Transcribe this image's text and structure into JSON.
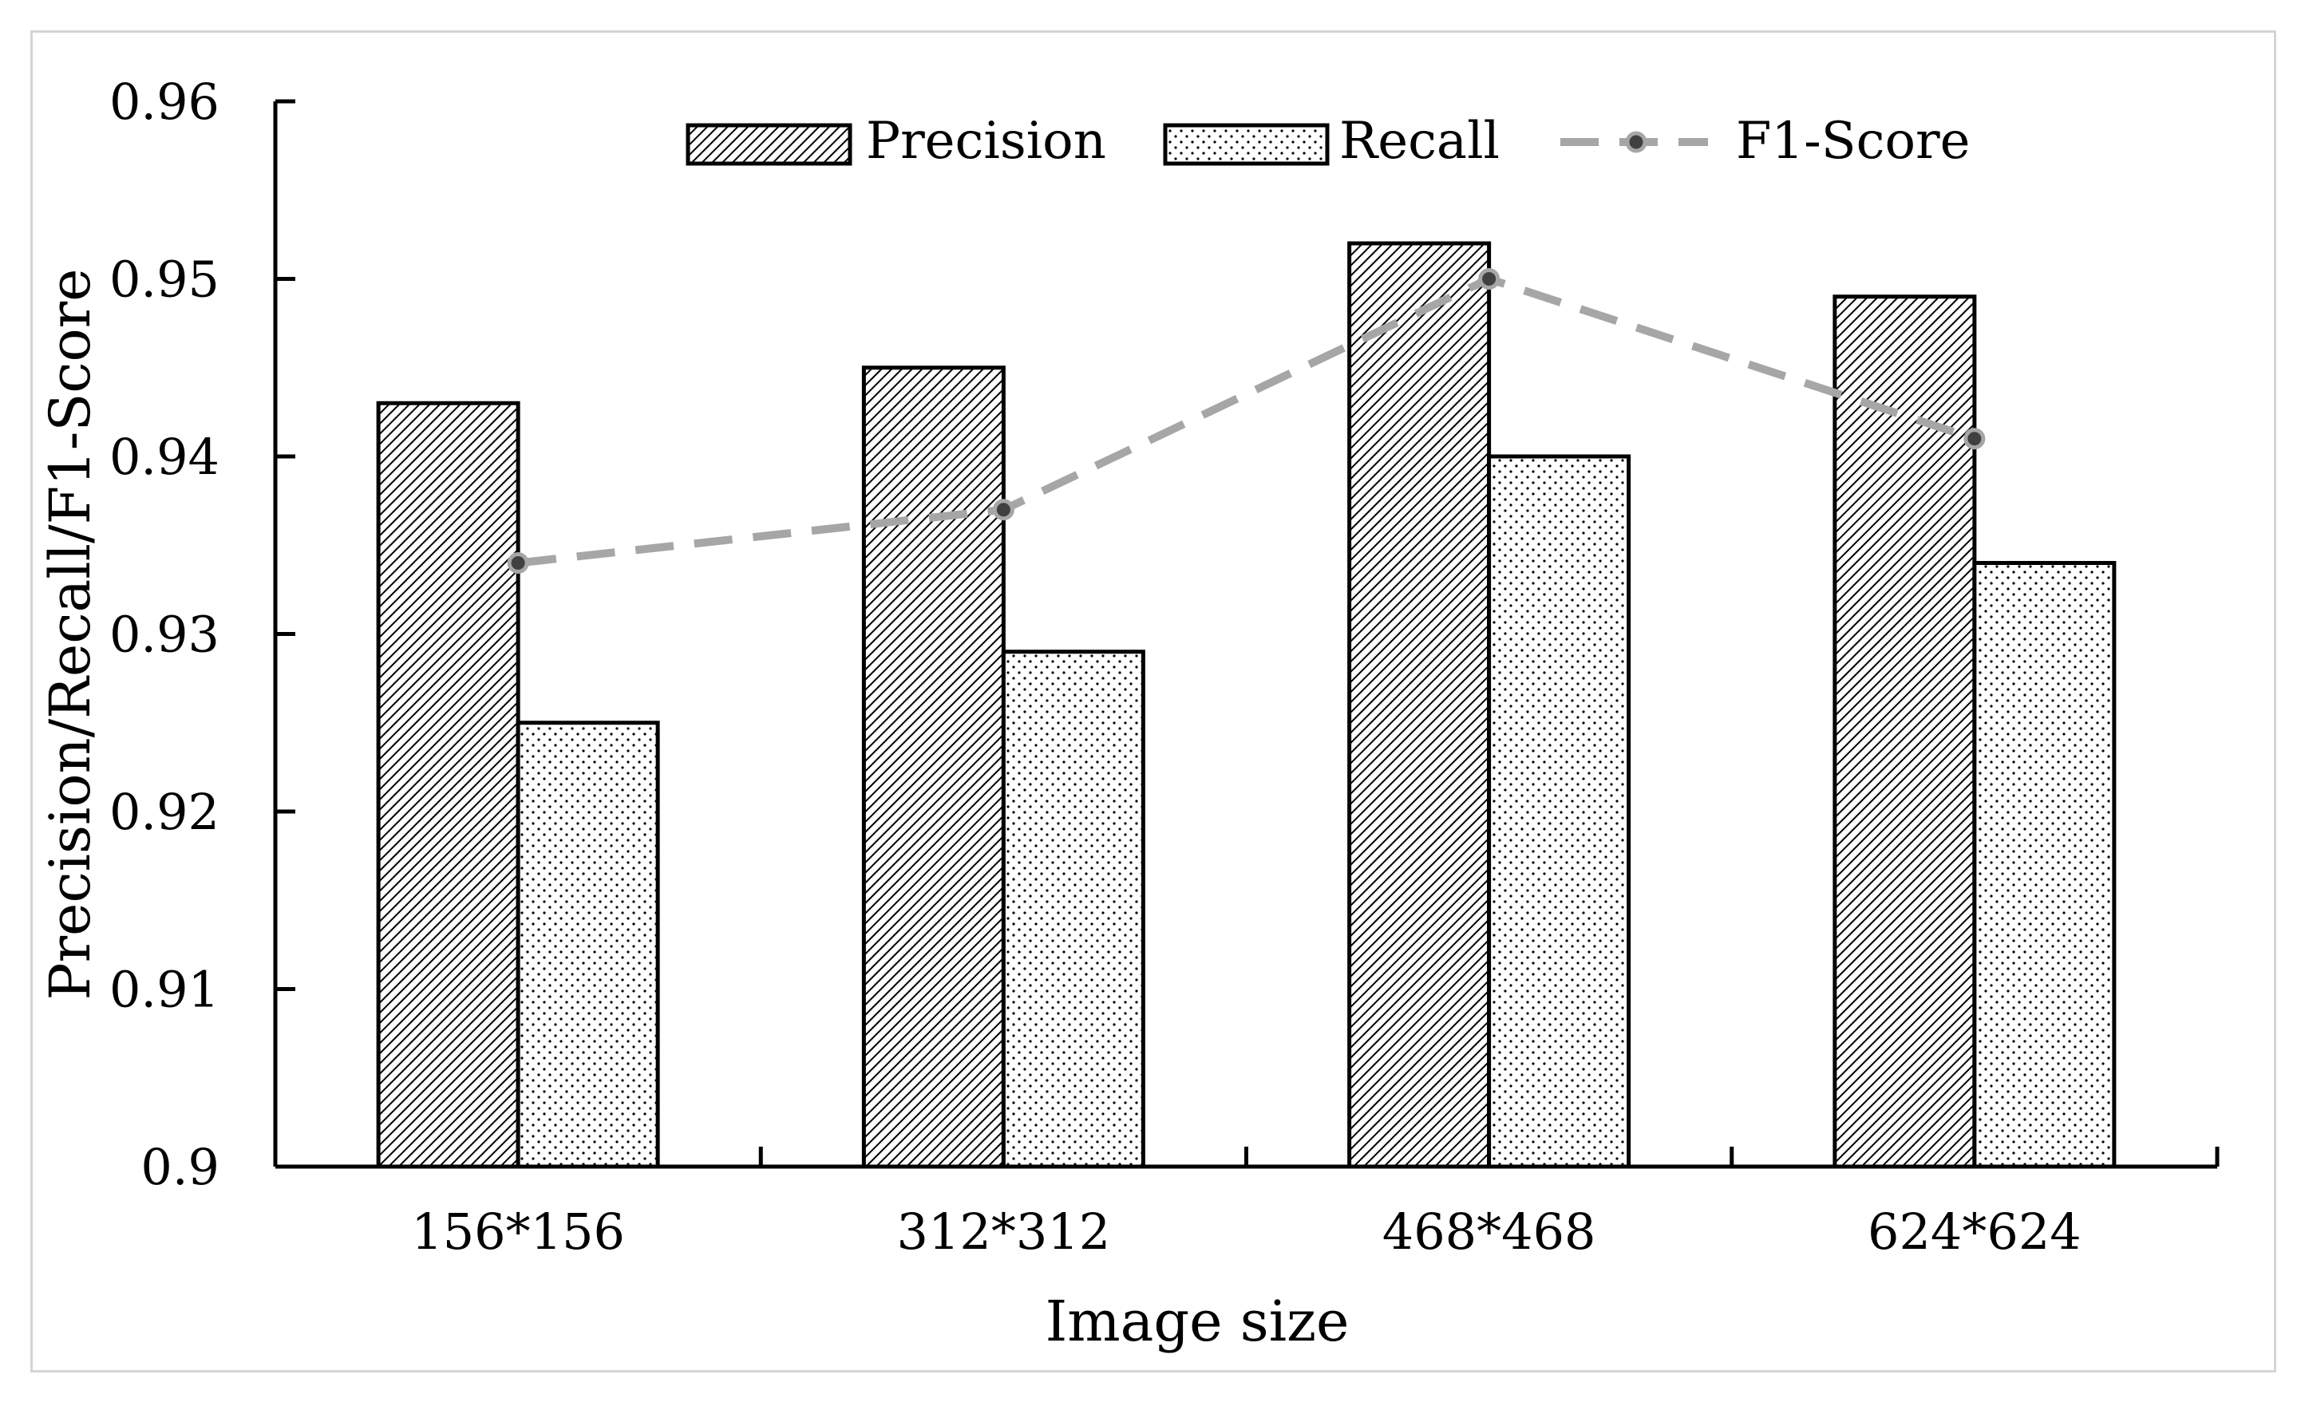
{
  "chart_data": {
    "type": "bar",
    "categories": [
      "156*156",
      "312*312",
      "468*468",
      "624*624"
    ],
    "series": [
      {
        "name": "Precision",
        "kind": "bar",
        "pattern": "diagonal-hatch",
        "values": [
          0.943,
          0.945,
          0.952,
          0.949
        ]
      },
      {
        "name": "Recall",
        "kind": "bar",
        "pattern": "dots",
        "values": [
          0.925,
          0.929,
          0.94,
          0.934
        ]
      },
      {
        "name": "F1-Score",
        "kind": "line",
        "style": "dashed",
        "values": [
          0.934,
          0.937,
          0.95,
          0.941
        ]
      }
    ],
    "title": "",
    "xlabel": "Image size",
    "ylabel": "Precision/Recall/F1-Score",
    "ylim": [
      0.9,
      0.96
    ],
    "yticks": [
      "0.9",
      "0.91",
      "0.92",
      "0.93",
      "0.94",
      "0.95",
      "0.96"
    ],
    "grid": false,
    "legend_position": "top"
  },
  "colors": {
    "bar_outline": "#000000",
    "f1_line": "#a6a6a6",
    "f1_marker": "#404040"
  }
}
